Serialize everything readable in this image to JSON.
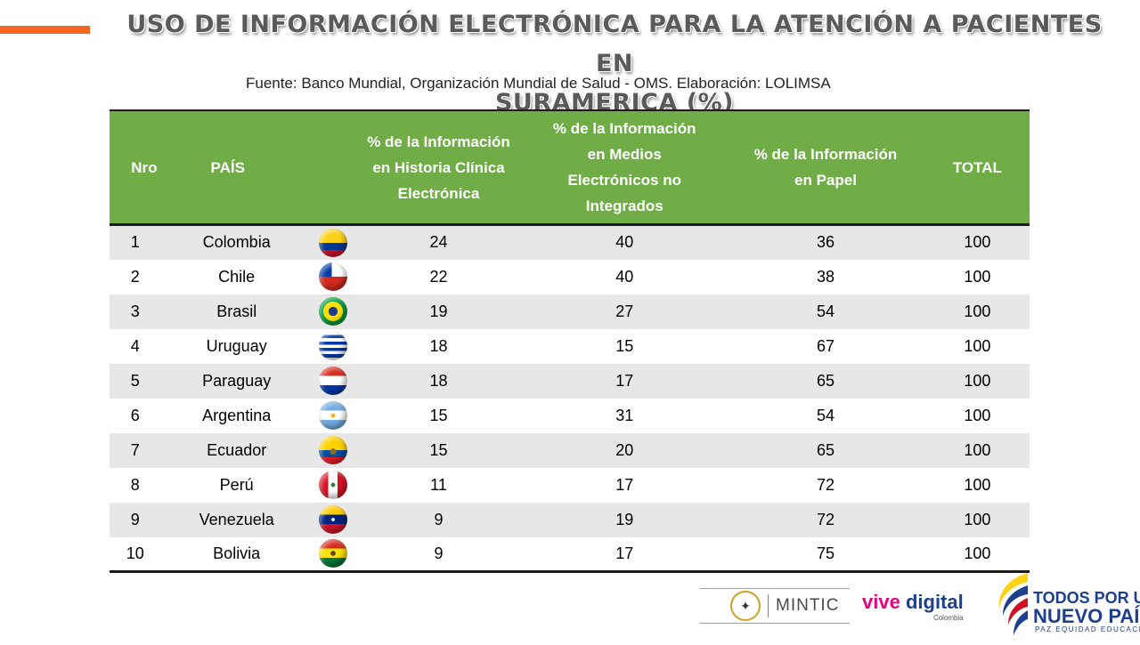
{
  "slide": {
    "title_line1": "USO DE INFORMACIÓN ELECTRÓNICA PARA LA ATENCIÓN A PACIENTES EN",
    "title_line2": "SURAMERICA (%)",
    "source": "Fuente: Banco Mundial, Organización Mundial de Salud - OMS. Elaboración: LOLIMSA",
    "accent_color": "#f26522",
    "header_color": "#70ad47"
  },
  "table": {
    "headers": {
      "nro": "Nro",
      "pais": "PAÍS",
      "historia": "% de la Información en Historia Clínica Electrónica",
      "medios": "% de la Información en Medios Electrónicos no Integrados",
      "papel": "% de la Información en Papel",
      "total": "TOTAL"
    },
    "rows": [
      {
        "nro": "1",
        "pais": "Colombia",
        "flag": "colombia-flag",
        "historia": "24",
        "medios": "40",
        "papel": "36",
        "total": "100"
      },
      {
        "nro": "2",
        "pais": "Chile",
        "flag": "chile-flag",
        "historia": "22",
        "medios": "40",
        "papel": "38",
        "total": "100"
      },
      {
        "nro": "3",
        "pais": "Brasil",
        "flag": "brazil-flag",
        "historia": "19",
        "medios": "27",
        "papel": "54",
        "total": "100"
      },
      {
        "nro": "4",
        "pais": "Uruguay",
        "flag": "uruguay-flag",
        "historia": "18",
        "medios": "15",
        "papel": "67",
        "total": "100"
      },
      {
        "nro": "5",
        "pais": "Paraguay",
        "flag": "paraguay-flag",
        "historia": "18",
        "medios": "17",
        "papel": "65",
        "total": "100"
      },
      {
        "nro": "6",
        "pais": "Argentina",
        "flag": "argentina-flag",
        "historia": "15",
        "medios": "31",
        "papel": "54",
        "total": "100"
      },
      {
        "nro": "7",
        "pais": "Ecuador",
        "flag": "ecuador-flag",
        "historia": "15",
        "medios": "20",
        "papel": "65",
        "total": "100"
      },
      {
        "nro": "8",
        "pais": "Perú",
        "flag": "peru-flag",
        "historia": "11",
        "medios": "17",
        "papel": "72",
        "total": "100"
      },
      {
        "nro": "9",
        "pais": "Venezuela",
        "flag": "venezuela-flag",
        "historia": "9",
        "medios": "19",
        "papel": "72",
        "total": "100"
      },
      {
        "nro": "10",
        "pais": "Bolivia",
        "flag": "bolivia-flag",
        "historia": "9",
        "medios": "17",
        "papel": "75",
        "total": "100"
      }
    ]
  },
  "logos": {
    "mintic": "MINTIC",
    "vive_1": "vive",
    "vive_2": "digital",
    "vive_sub": "Colombia",
    "tpun_1": "TODOS POR UN",
    "tpun_2": "NUEVO PAÍS",
    "tpun_3": "PAZ EQUIDAD EDUCACIÓN"
  }
}
